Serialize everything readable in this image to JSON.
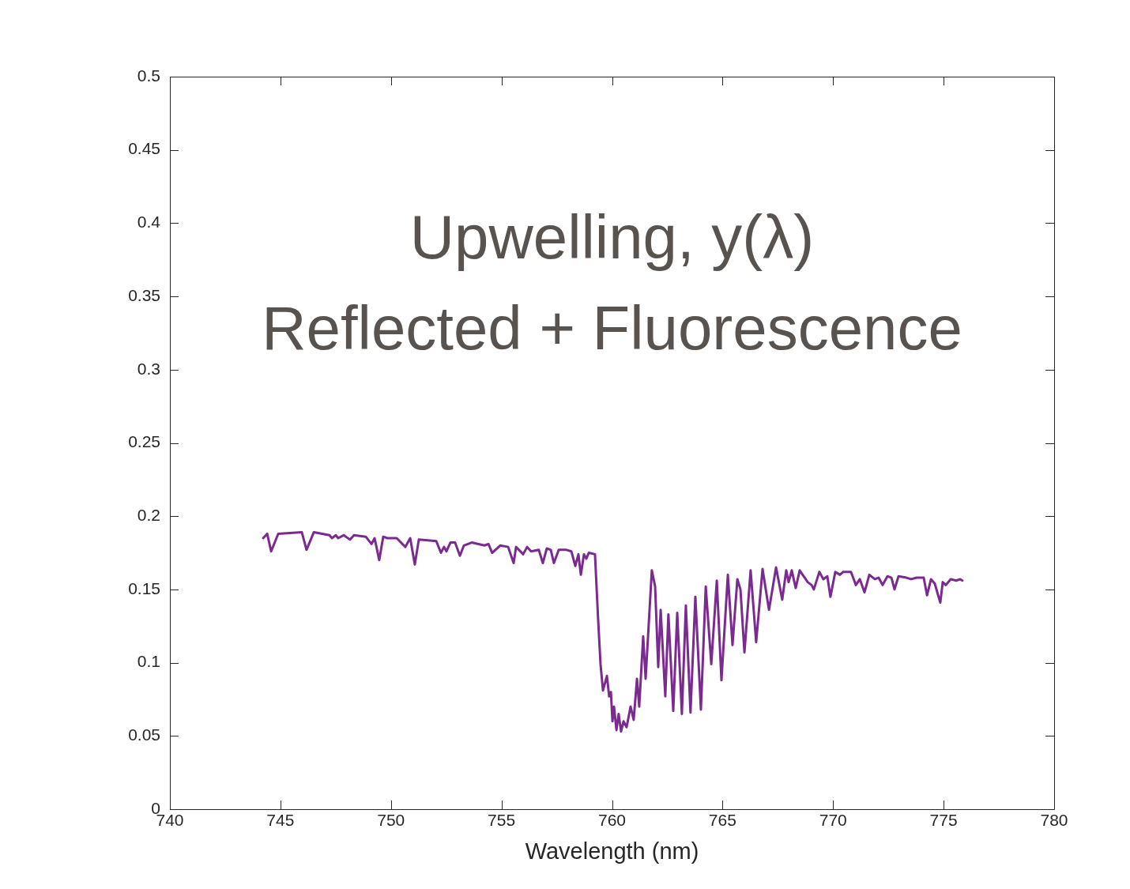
{
  "chart_data": {
    "type": "line",
    "title": "Upwelling, y(λ)",
    "subtitle": "Reflected + Fluorescence",
    "xlabel": "Wavelength (nm)",
    "xlim": [
      740,
      780
    ],
    "xticks": [
      740,
      745,
      750,
      755,
      760,
      765,
      770,
      775,
      780
    ],
    "ylim": [
      0,
      0.5
    ],
    "yticks": [
      0,
      0.05,
      0.1,
      0.15,
      0.2,
      0.25,
      0.3,
      0.35,
      0.4,
      0.45,
      0.5
    ],
    "grid": false,
    "legend": false,
    "marker": "none",
    "line_style": "solid",
    "series": [
      {
        "color": "#7b2a8f",
        "x": [
          744.22,
          744.4,
          744.58,
          744.9,
          745.97,
          746.18,
          746.51,
          747.22,
          747.33,
          747.51,
          747.61,
          747.86,
          748.15,
          748.33,
          748.86,
          749.12,
          749.26,
          749.47,
          749.65,
          749.83,
          750.26,
          750.65,
          750.87,
          751.08,
          751.26,
          752.05,
          752.26,
          752.4,
          752.51,
          752.69,
          752.9,
          753.12,
          753.3,
          753.65,
          754.23,
          754.41,
          754.58,
          754.94,
          755.3,
          755.55,
          755.66,
          755.98,
          756.16,
          756.34,
          756.69,
          756.87,
          757.05,
          757.23,
          757.37,
          757.59,
          757.94,
          758.16,
          758.34,
          758.48,
          758.59,
          758.73,
          758.84,
          758.95,
          759.23,
          759.37,
          759.48,
          759.59,
          759.77,
          759.87,
          759.95,
          760.02,
          760.09,
          760.2,
          760.3,
          760.41,
          760.52,
          760.66,
          760.84,
          760.98,
          761.13,
          761.23,
          761.41,
          761.52,
          761.8,
          761.95,
          762.09,
          762.2,
          762.41,
          762.55,
          762.77,
          762.95,
          763.16,
          763.34,
          763.55,
          763.77,
          764.02,
          764.24,
          764.49,
          764.74,
          764.95,
          765.24,
          765.45,
          765.67,
          765.81,
          765.99,
          766.27,
          766.52,
          766.81,
          767.1,
          767.42,
          767.7,
          767.88,
          767.99,
          768.13,
          768.31,
          768.49,
          768.85,
          769.03,
          769.13,
          769.38,
          769.56,
          769.74,
          769.88,
          770.1,
          770.31,
          770.46,
          770.81,
          771.03,
          771.21,
          771.42,
          771.64,
          771.89,
          772.06,
          772.24,
          772.46,
          772.64,
          772.78,
          772.96,
          773.32,
          773.53,
          773.78,
          774.1,
          774.25,
          774.43,
          774.6,
          774.85,
          774.96,
          775.1,
          775.32,
          775.57,
          775.75,
          775.85
        ],
        "values": [
          0.185,
          0.188,
          0.176,
          0.188,
          0.189,
          0.177,
          0.189,
          0.187,
          0.185,
          0.187,
          0.185,
          0.187,
          0.184,
          0.187,
          0.186,
          0.181,
          0.185,
          0.17,
          0.186,
          0.185,
          0.185,
          0.179,
          0.185,
          0.167,
          0.184,
          0.183,
          0.175,
          0.179,
          0.176,
          0.182,
          0.182,
          0.173,
          0.18,
          0.182,
          0.18,
          0.181,
          0.175,
          0.18,
          0.179,
          0.168,
          0.179,
          0.174,
          0.179,
          0.176,
          0.177,
          0.168,
          0.178,
          0.177,
          0.168,
          0.177,
          0.177,
          0.176,
          0.166,
          0.174,
          0.16,
          0.174,
          0.171,
          0.175,
          0.174,
          0.13,
          0.099,
          0.081,
          0.091,
          0.077,
          0.08,
          0.06,
          0.07,
          0.054,
          0.065,
          0.053,
          0.06,
          0.056,
          0.07,
          0.061,
          0.089,
          0.07,
          0.118,
          0.089,
          0.163,
          0.152,
          0.097,
          0.136,
          0.077,
          0.133,
          0.067,
          0.134,
          0.065,
          0.139,
          0.066,
          0.145,
          0.068,
          0.152,
          0.099,
          0.156,
          0.088,
          0.16,
          0.112,
          0.157,
          0.15,
          0.107,
          0.163,
          0.114,
          0.164,
          0.136,
          0.165,
          0.143,
          0.163,
          0.155,
          0.163,
          0.151,
          0.163,
          0.155,
          0.153,
          0.15,
          0.162,
          0.157,
          0.159,
          0.145,
          0.162,
          0.16,
          0.162,
          0.162,
          0.153,
          0.157,
          0.148,
          0.16,
          0.157,
          0.158,
          0.153,
          0.159,
          0.158,
          0.15,
          0.159,
          0.158,
          0.157,
          0.158,
          0.158,
          0.146,
          0.157,
          0.154,
          0.141,
          0.155,
          0.153,
          0.157,
          0.156,
          0.157,
          0.156
        ]
      }
    ]
  }
}
